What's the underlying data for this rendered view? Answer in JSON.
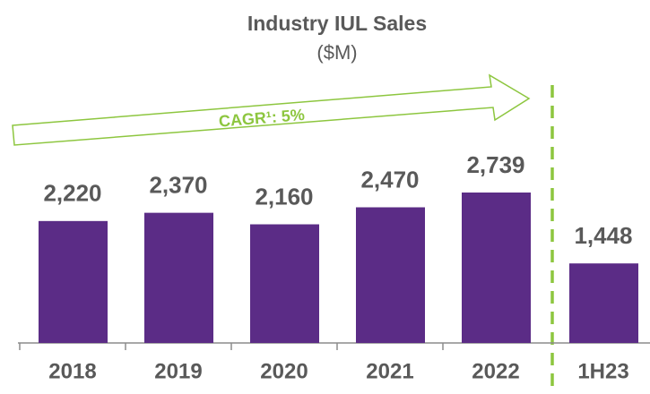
{
  "chart_data": {
    "type": "bar",
    "title": "Industry IUL Sales",
    "subtitle": "($M)",
    "annotation": "CAGR¹: 5%",
    "categories": [
      "2018",
      "2019",
      "2020",
      "2021",
      "2022",
      "1H23"
    ],
    "values": [
      2220,
      2370,
      2160,
      2470,
      2739,
      1448
    ],
    "value_labels": [
      "2,220",
      "2,370",
      "2,160",
      "2,470",
      "2,739",
      "1,448"
    ],
    "color": "#5b2c86"
  }
}
